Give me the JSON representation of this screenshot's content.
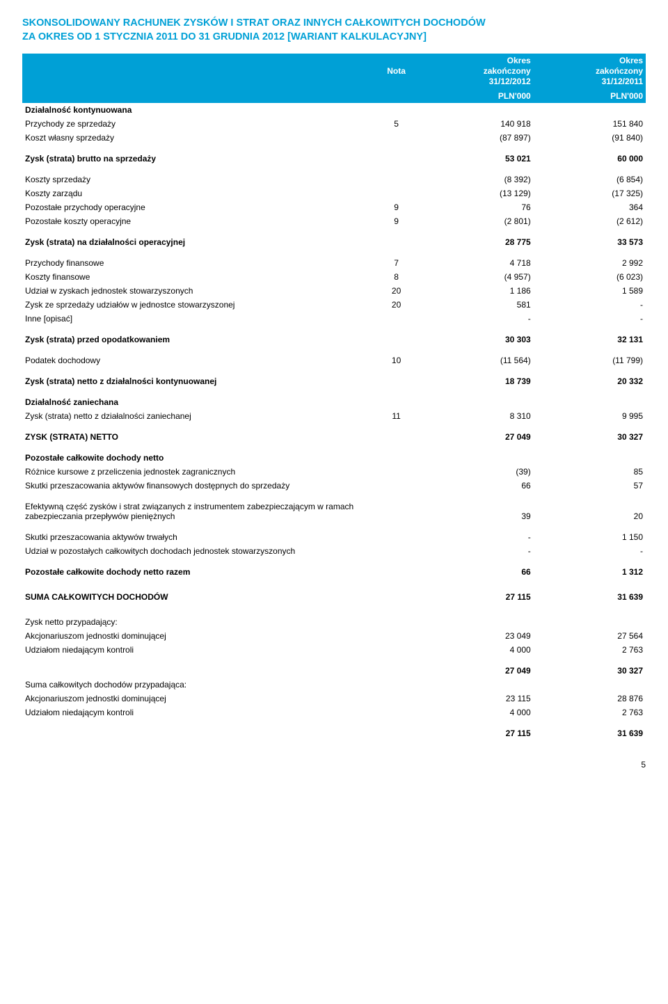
{
  "title_l1": "SKONSOLIDOWANY RACHUNEK ZYSKÓW I STRAT ORAZ INNYCH CAŁKOWITYCH DOCHODÓW",
  "title_l2": "ZA OKRES OD 1 STYCZNIA 2011 DO 31 GRUDNIA 2012 [WARIANT KALKULACYJNY]",
  "header": {
    "nota": "Nota",
    "period_l1": "Okres",
    "period_l2": "zakończony",
    "col1_date": "31/12/2012",
    "col2_date": "31/12/2011",
    "unit1": "PLN'000",
    "unit2": "PLN'000"
  },
  "rows": [
    {
      "label": "Działalność kontynuowana",
      "bold": true
    },
    {
      "label": "Przychody ze sprzedaży",
      "nota": "5",
      "v1": "140 918",
      "v2": "151 840"
    },
    {
      "label": "Koszt własny sprzedaży",
      "v1": "(87 897)",
      "v2": "(91 840)"
    },
    {
      "spacer": true
    },
    {
      "label": "Zysk (strata) brutto na sprzedaży",
      "bold": true,
      "v1": "53 021",
      "v2": "60 000"
    },
    {
      "spacer": true
    },
    {
      "label": "Koszty sprzedaży",
      "v1": "(8 392)",
      "v2": "(6 854)"
    },
    {
      "label": "Koszty zarządu",
      "v1": "(13 129)",
      "v2": "(17 325)"
    },
    {
      "label": "Pozostałe przychody operacyjne",
      "nota": "9",
      "v1": "76",
      "v2": "364"
    },
    {
      "label": "Pozostałe koszty operacyjne",
      "nota": "9",
      "v1": "(2 801)",
      "v2": "(2 612)"
    },
    {
      "spacer": true
    },
    {
      "label": "Zysk (strata) na działalności operacyjnej",
      "bold": true,
      "v1": "28 775",
      "v2": "33 573"
    },
    {
      "spacer": true
    },
    {
      "label": "Przychody finansowe",
      "nota": "7",
      "v1": "4 718",
      "v2": "2 992"
    },
    {
      "label": "Koszty finansowe",
      "nota": "8",
      "v1": "(4 957)",
      "v2": "(6 023)"
    },
    {
      "label": "Udział w zyskach jednostek stowarzyszonych",
      "nota": "20",
      "v1": "1 186",
      "v2": "1 589"
    },
    {
      "label": "Zysk ze sprzedaży udziałów w jednostce stowarzyszonej",
      "nota": "20",
      "v1": "581",
      "v2": "-"
    },
    {
      "label": "Inne [opisać]",
      "v1": "-",
      "v2": "-"
    },
    {
      "spacer": true
    },
    {
      "label": "Zysk (strata) przed opodatkowaniem",
      "bold": true,
      "v1": "30 303",
      "v2": "32 131"
    },
    {
      "spacer": true
    },
    {
      "label": "Podatek dochodowy",
      "nota": "10",
      "v1": "(11 564)",
      "v2": "(11 799)"
    },
    {
      "spacer": true
    },
    {
      "label": "Zysk (strata) netto z działalności kontynuowanej",
      "bold": true,
      "v1": "18 739",
      "v2": "20 332"
    },
    {
      "spacer": true
    },
    {
      "label": "Działalność zaniechana",
      "bold": true
    },
    {
      "label": "Zysk (strata) netto z działalności zaniechanej",
      "nota": "11",
      "v1": "8 310",
      "v2": "9 995"
    },
    {
      "spacer": true
    },
    {
      "label": "ZYSK (STRATA) NETTO",
      "bold": true,
      "v1": "27 049",
      "v2": "30 327"
    },
    {
      "spacer": true
    },
    {
      "label": "Pozostałe całkowite dochody netto",
      "bold": true
    },
    {
      "label": "Różnice kursowe z przeliczenia jednostek zagranicznych",
      "v1": "(39)",
      "v2": "85"
    },
    {
      "label": "Skutki przeszacowania aktywów finansowych dostępnych do sprzedaży",
      "v1": "66",
      "v2": "57"
    },
    {
      "spacer": true
    },
    {
      "label": "Efektywną część zysków i strat związanych z instrumentem zabezpieczającym w ramach zabezpieczania przepływów pieniężnych",
      "v1": "39",
      "v2": "20"
    },
    {
      "spacer": true
    },
    {
      "label": "Skutki przeszacowania aktywów trwałych",
      "v1": "-",
      "v2": "1 150"
    },
    {
      "label": "Udział w pozostałych całkowitych dochodach jednostek stowarzyszonych",
      "v1": "-",
      "v2": "-"
    },
    {
      "spacer": true
    },
    {
      "label": "Pozostałe całkowite dochody netto razem",
      "bold": true,
      "v1": "66",
      "v2": "1 312"
    },
    {
      "bigspacer": true
    },
    {
      "label": "SUMA CAŁKOWITYCH DOCHODÓW",
      "bold": true,
      "v1": "27 115",
      "v2": "31 639"
    },
    {
      "bigspacer": true
    },
    {
      "label": "Zysk netto przypadający:"
    },
    {
      "label": "Akcjonariuszom jednostki dominującej",
      "indent": true,
      "v1": "23 049",
      "v2": "27 564"
    },
    {
      "label": "Udziałom niedającym kontroli",
      "indent": true,
      "v1": "4 000",
      "v2": "2 763"
    },
    {
      "spacer": true
    },
    {
      "label": "",
      "bold": true,
      "v1": "27 049",
      "v2": "30 327"
    },
    {
      "label": "Suma całkowitych dochodów przypadająca:"
    },
    {
      "label": "Akcjonariuszom jednostki dominującej",
      "indent": true,
      "v1": "23 115",
      "v2": "28 876"
    },
    {
      "label": "Udziałom niedającym kontroli",
      "indent": true,
      "v1": "4 000",
      "v2": "2 763"
    },
    {
      "spacer": true
    },
    {
      "label": "",
      "bold": true,
      "v1": "27 115",
      "v2": "31 639"
    }
  ],
  "page_number": "5"
}
